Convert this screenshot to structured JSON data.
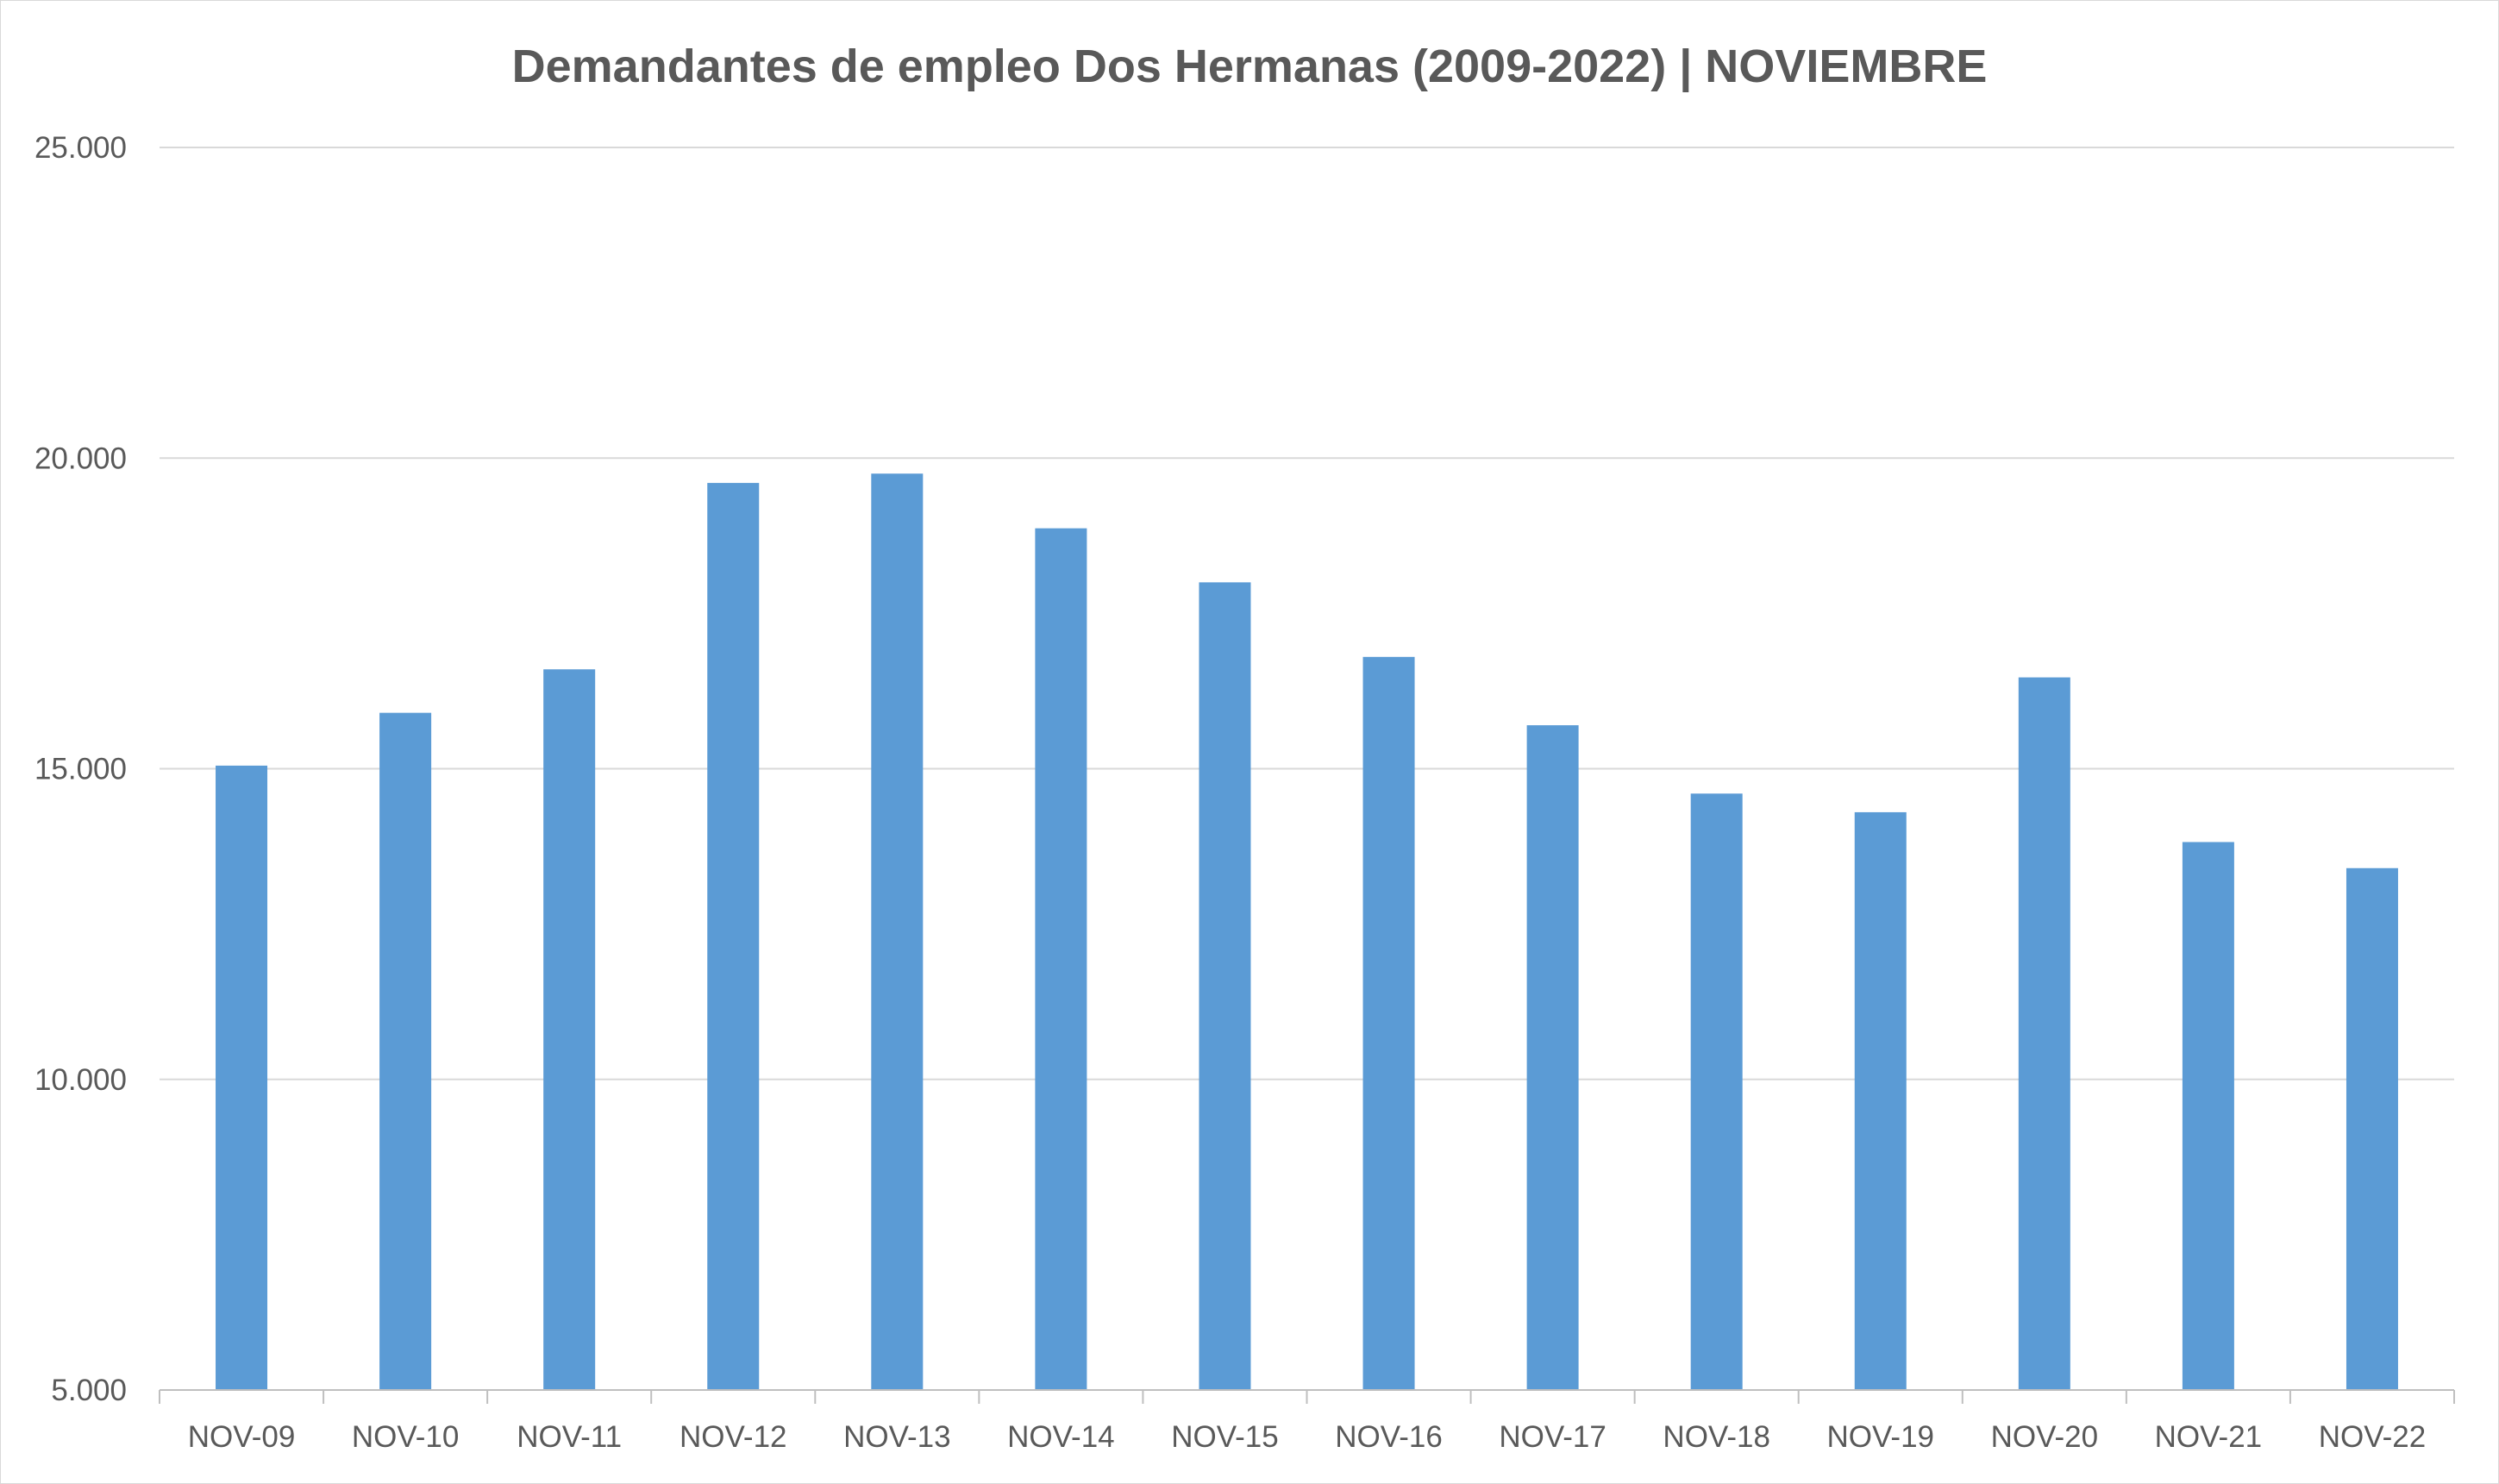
{
  "chart_data": {
    "type": "bar",
    "title": "Demandantes de empleo Dos Hermanas (2009-2022) | NOVIEMBRE",
    "xlabel": "",
    "ylabel": "",
    "categories": [
      "NOV-09",
      "NOV-10",
      "NOV-11",
      "NOV-12",
      "NOV-13",
      "NOV-14",
      "NOV-15",
      "NOV-16",
      "NOV-17",
      "NOV-18",
      "NOV-19",
      "NOV-20",
      "NOV-21",
      "NOV-22"
    ],
    "values": [
      15050,
      15900,
      16600,
      19600,
      19750,
      18870,
      18000,
      16800,
      15700,
      14600,
      14300,
      16470,
      13820,
      13400
    ],
    "ylim": [
      5000,
      25000
    ],
    "yticks": [
      5000,
      10000,
      15000,
      20000,
      25000
    ],
    "ytick_labels": [
      "5.000",
      "10.000",
      "15.000",
      "20.000",
      "25.000"
    ],
    "grid": true,
    "legend": "none",
    "bar_color": "#5b9bd5"
  }
}
